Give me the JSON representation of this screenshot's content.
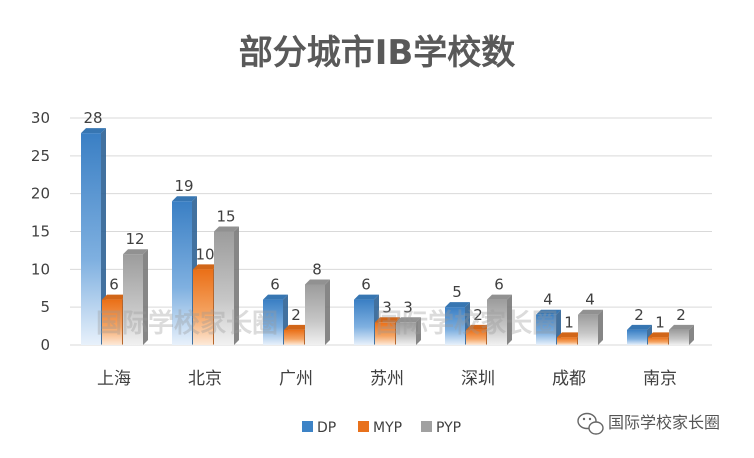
{
  "chart_data": {
    "type": "bar",
    "title": "部分城市IB学校数",
    "categories": [
      "上海",
      "北京",
      "广州",
      "苏州",
      "深圳",
      "成都",
      "南京"
    ],
    "series": [
      {
        "name": "DP",
        "values": [
          28,
          19,
          6,
          6,
          5,
          4,
          2
        ],
        "color": "#3d83c6"
      },
      {
        "name": "MYP",
        "values": [
          6,
          10,
          2,
          3,
          2,
          1,
          1
        ],
        "color": "#e8711c"
      },
      {
        "name": "PYP",
        "values": [
          12,
          15,
          8,
          3,
          6,
          4,
          2
        ],
        "color": "#a1a1a1"
      }
    ],
    "y_ticks": [
      "0",
      "5",
      "10",
      "15",
      "20",
      "25",
      "30"
    ],
    "ylim": [
      0,
      30
    ],
    "grid": true,
    "legend_position": "bottom"
  },
  "watermark": "国际学校家长圈",
  "badge": {
    "icon": "wechat-icon",
    "text": "国际学校家长圈"
  }
}
